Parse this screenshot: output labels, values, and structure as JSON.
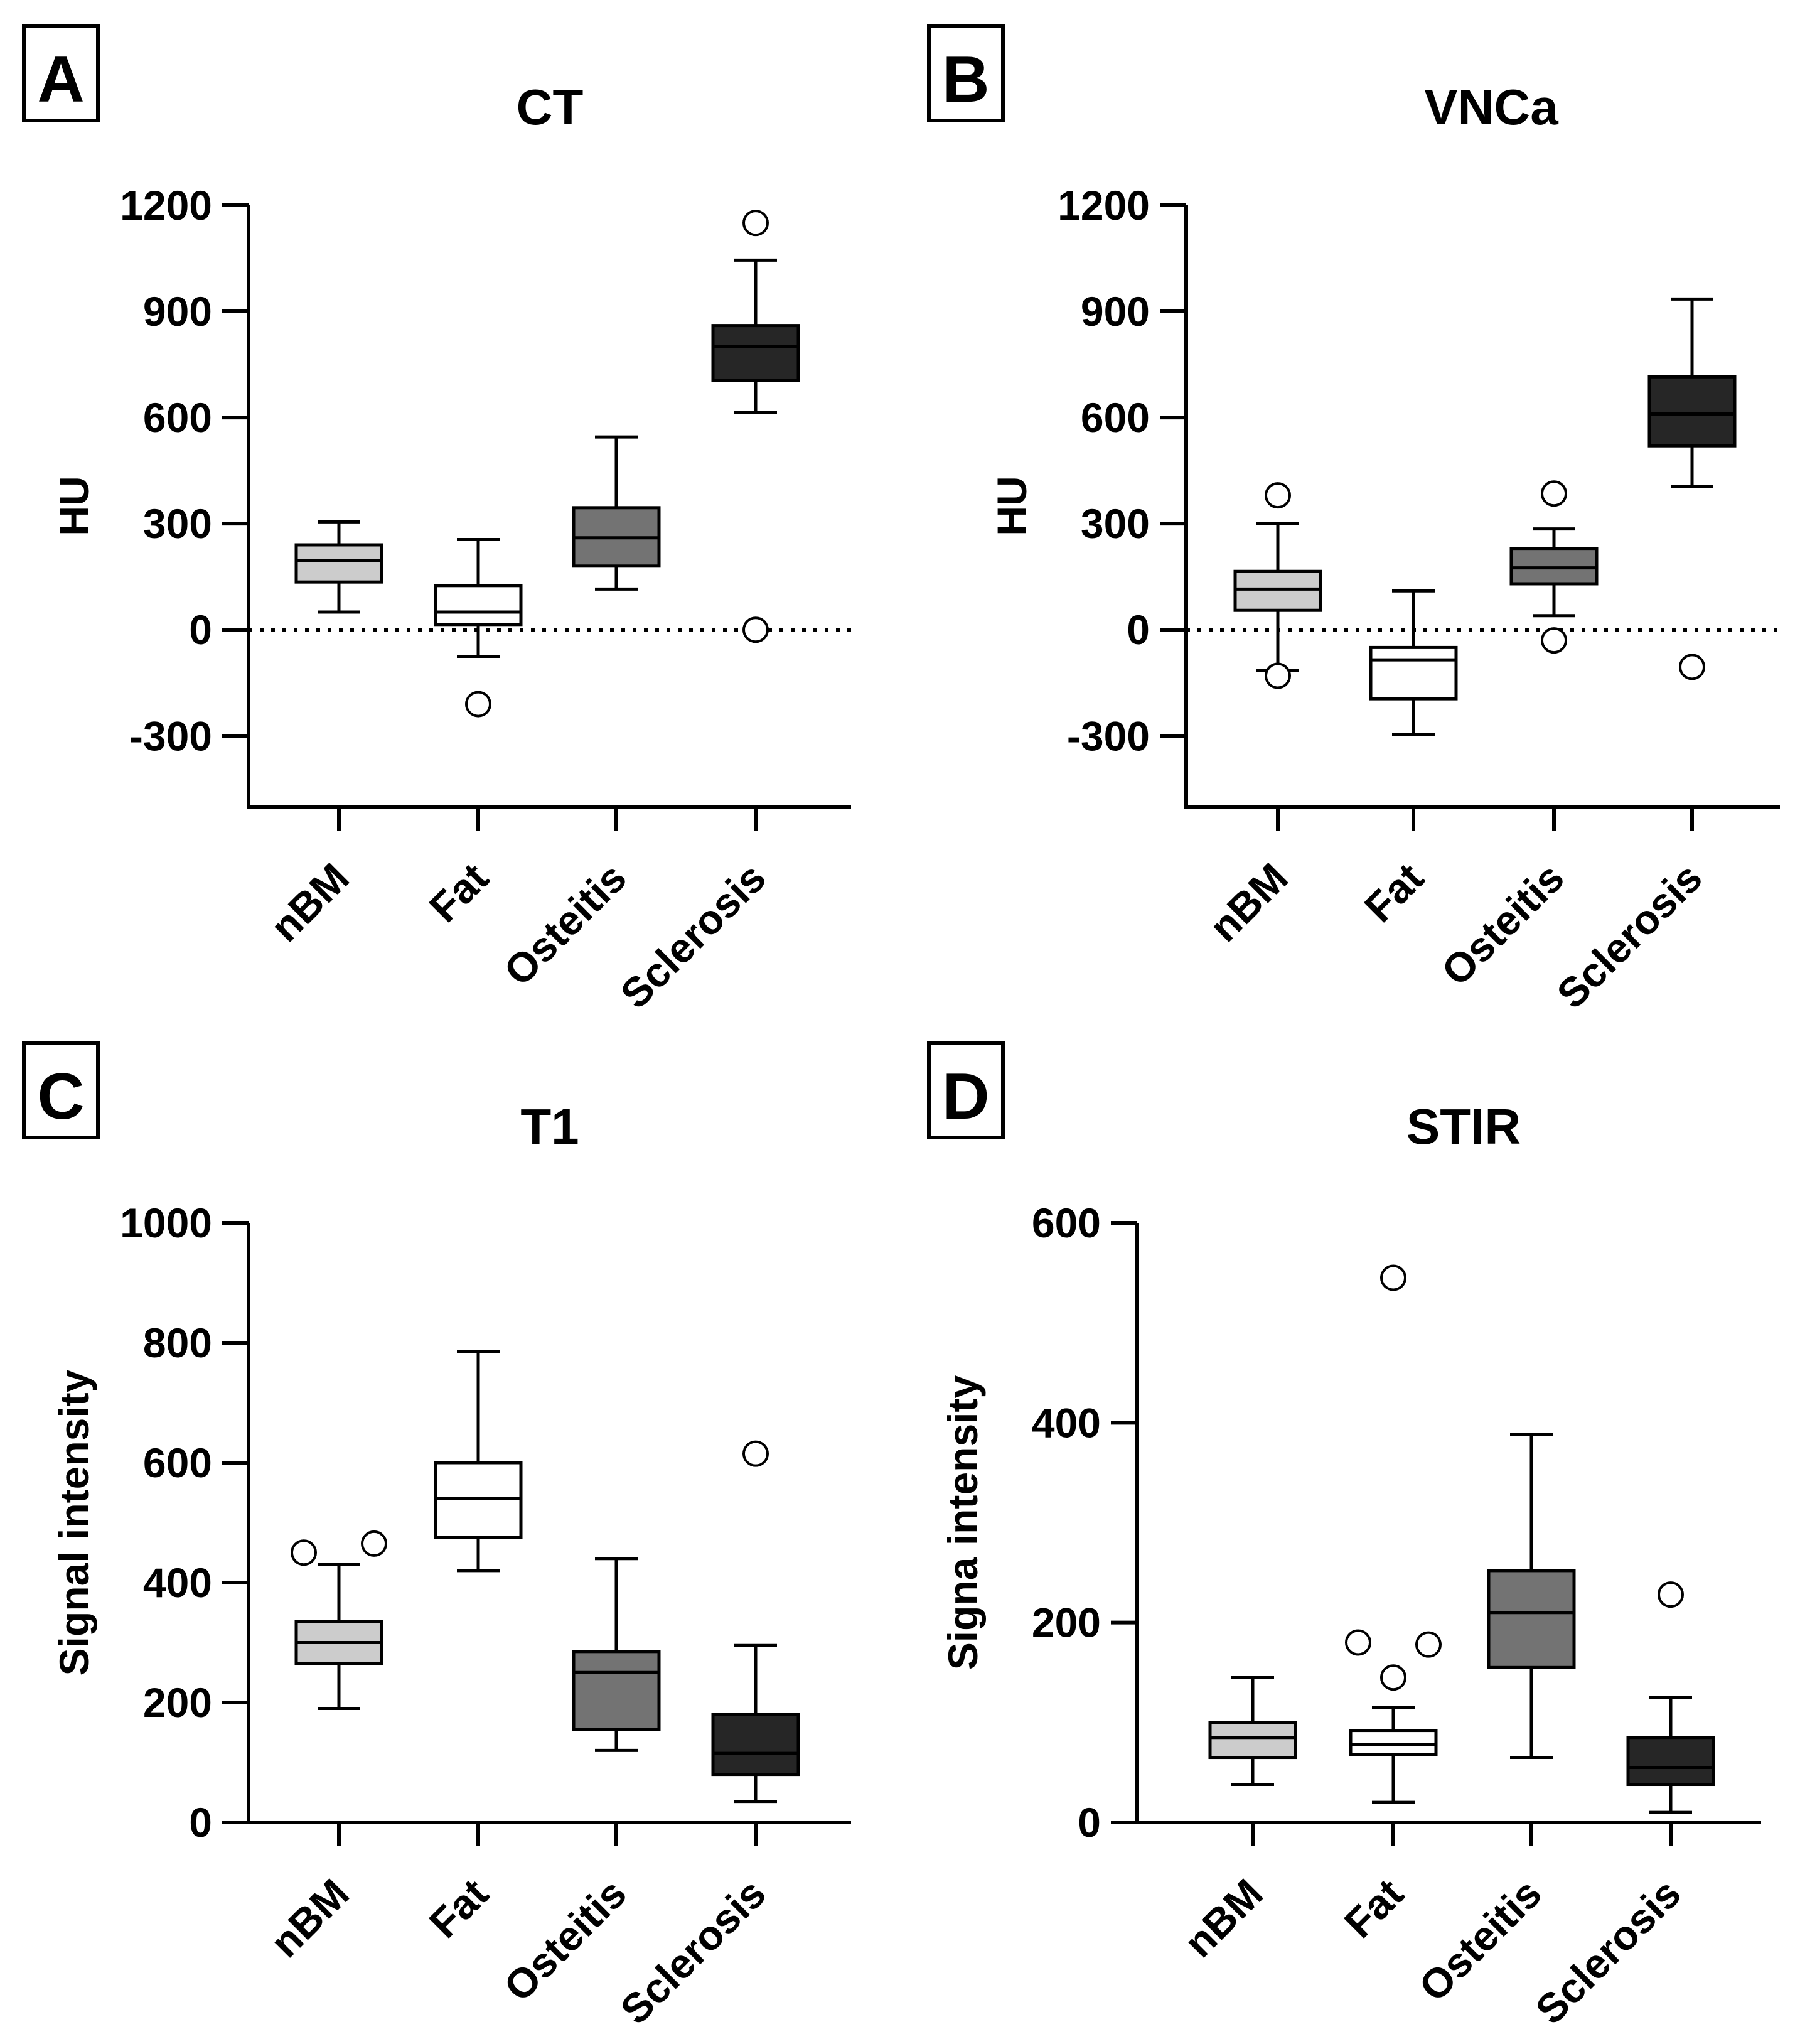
{
  "figure": {
    "panels": [
      "A",
      "B",
      "C",
      "D"
    ]
  },
  "chart_data": [
    {
      "panel_label": "A",
      "type": "box",
      "title": "CT",
      "ylabel": "HU",
      "xlabel": "",
      "ylim": [
        -500,
        1200
      ],
      "yticks": [
        -300,
        0,
        300,
        600,
        900,
        1200
      ],
      "zero_line": true,
      "categories": [
        "nBM",
        "Fat",
        "Osteitis",
        "Sclerosis"
      ],
      "fills": [
        "#cccccc",
        "#ffffff",
        "#737373",
        "#262626"
      ],
      "medianColors": [
        "#000000",
        "#000000",
        "#000000",
        "#000000"
      ],
      "boxes": [
        {
          "whiskerLow": 50,
          "q1": 135,
          "median": 195,
          "q3": 240,
          "whiskerHigh": 305,
          "outliers": []
        },
        {
          "whiskerLow": -75,
          "q1": 15,
          "median": 50,
          "q3": 125,
          "whiskerHigh": 255,
          "outliers": [
            -210
          ]
        },
        {
          "whiskerLow": 115,
          "q1": 180,
          "median": 260,
          "q3": 345,
          "whiskerHigh": 545,
          "outliers": []
        },
        {
          "whiskerLow": 615,
          "q1": 705,
          "median": 800,
          "q3": 860,
          "whiskerHigh": 1045,
          "outliers": [
            1150,
            0
          ]
        }
      ]
    },
    {
      "panel_label": "B",
      "type": "box",
      "title": "VNCa",
      "ylabel": "HU",
      "xlabel": "",
      "ylim": [
        -500,
        1200
      ],
      "yticks": [
        -300,
        0,
        300,
        600,
        900,
        1200
      ],
      "zero_line": true,
      "categories": [
        "nBM",
        "Fat",
        "Osteitis",
        "Sclerosis"
      ],
      "fills": [
        "#cccccc",
        "#ffffff",
        "#737373",
        "#262626"
      ],
      "medianColors": [
        "#000000",
        "#000000",
        "#000000",
        "#000000"
      ],
      "boxes": [
        {
          "whiskerLow": -115,
          "q1": 55,
          "median": 115,
          "q3": 165,
          "whiskerHigh": 300,
          "outliers": [
            380,
            -130
          ]
        },
        {
          "whiskerLow": -295,
          "q1": -195,
          "median": -85,
          "q3": -50,
          "whiskerHigh": 110,
          "outliers": []
        },
        {
          "whiskerLow": 40,
          "q1": 130,
          "median": 175,
          "q3": 230,
          "whiskerHigh": 285,
          "outliers": [
            385,
            -30
          ]
        },
        {
          "whiskerLow": 405,
          "q1": 520,
          "median": 610,
          "q3": 715,
          "whiskerHigh": 935,
          "outliers": [
            -105
          ]
        }
      ]
    },
    {
      "panel_label": "C",
      "type": "box",
      "title": "T1",
      "ylabel": "Signal intensity",
      "xlabel": "",
      "ylim": [
        0,
        1000
      ],
      "yticks": [
        0,
        200,
        400,
        600,
        800,
        1000
      ],
      "zero_line": false,
      "categories": [
        "nBM",
        "Fat",
        "Osteitis",
        "Sclerosis"
      ],
      "fills": [
        "#cccccc",
        "#ffffff",
        "#737373",
        "#262626"
      ],
      "medianColors": [
        "#000000",
        "#000000",
        "#000000",
        "#000000"
      ],
      "boxes": [
        {
          "whiskerLow": 190,
          "q1": 265,
          "median": 300,
          "q3": 335,
          "whiskerHigh": 430,
          "outliers": [
            450,
            465
          ]
        },
        {
          "whiskerLow": 420,
          "q1": 475,
          "median": 540,
          "q3": 600,
          "whiskerHigh": 785,
          "outliers": []
        },
        {
          "whiskerLow": 120,
          "q1": 155,
          "median": 250,
          "q3": 285,
          "whiskerHigh": 440,
          "outliers": []
        },
        {
          "whiskerLow": 35,
          "q1": 80,
          "median": 115,
          "q3": 180,
          "whiskerHigh": 295,
          "outliers": [
            615
          ]
        }
      ]
    },
    {
      "panel_label": "D",
      "type": "box",
      "title": "STIR",
      "ylabel": "Signa intensity",
      "xlabel": "",
      "ylim": [
        0,
        600
      ],
      "yticks": [
        0,
        200,
        400,
        600
      ],
      "zero_line": false,
      "categories": [
        "nBM",
        "Fat",
        "Osteitis",
        "Sclerosis"
      ],
      "fills": [
        "#cccccc",
        "#ffffff",
        "#737373",
        "#262626"
      ],
      "medianColors": [
        "#000000",
        "#000000",
        "#000000",
        "#000000"
      ],
      "boxes": [
        {
          "whiskerLow": 38,
          "q1": 65,
          "median": 85,
          "q3": 100,
          "whiskerHigh": 145,
          "outliers": []
        },
        {
          "whiskerLow": 20,
          "q1": 68,
          "median": 78,
          "q3": 92,
          "whiskerHigh": 115,
          "outliers": [
            545,
            180,
            145,
            178
          ]
        },
        {
          "whiskerLow": 65,
          "q1": 155,
          "median": 210,
          "q3": 252,
          "whiskerHigh": 388,
          "outliers": []
        },
        {
          "whiskerLow": 10,
          "q1": 38,
          "median": 55,
          "q3": 85,
          "whiskerHigh": 125,
          "outliers": [
            228
          ]
        }
      ]
    }
  ]
}
